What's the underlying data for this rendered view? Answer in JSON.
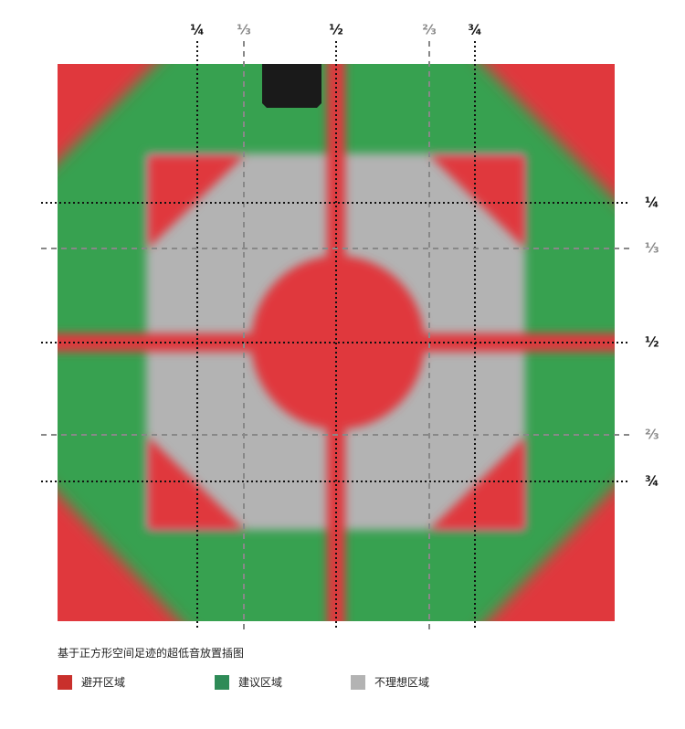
{
  "top_labels": [
    "¼",
    "⅓",
    "½",
    "⅔",
    "¾"
  ],
  "right_labels": [
    "¼",
    "⅓",
    "½",
    "⅔",
    "¾"
  ],
  "caption": "基于正方形空间足迹的超低音放置插图",
  "legend": [
    "避开区域",
    "建议区域",
    "不理想区域"
  ]
}
